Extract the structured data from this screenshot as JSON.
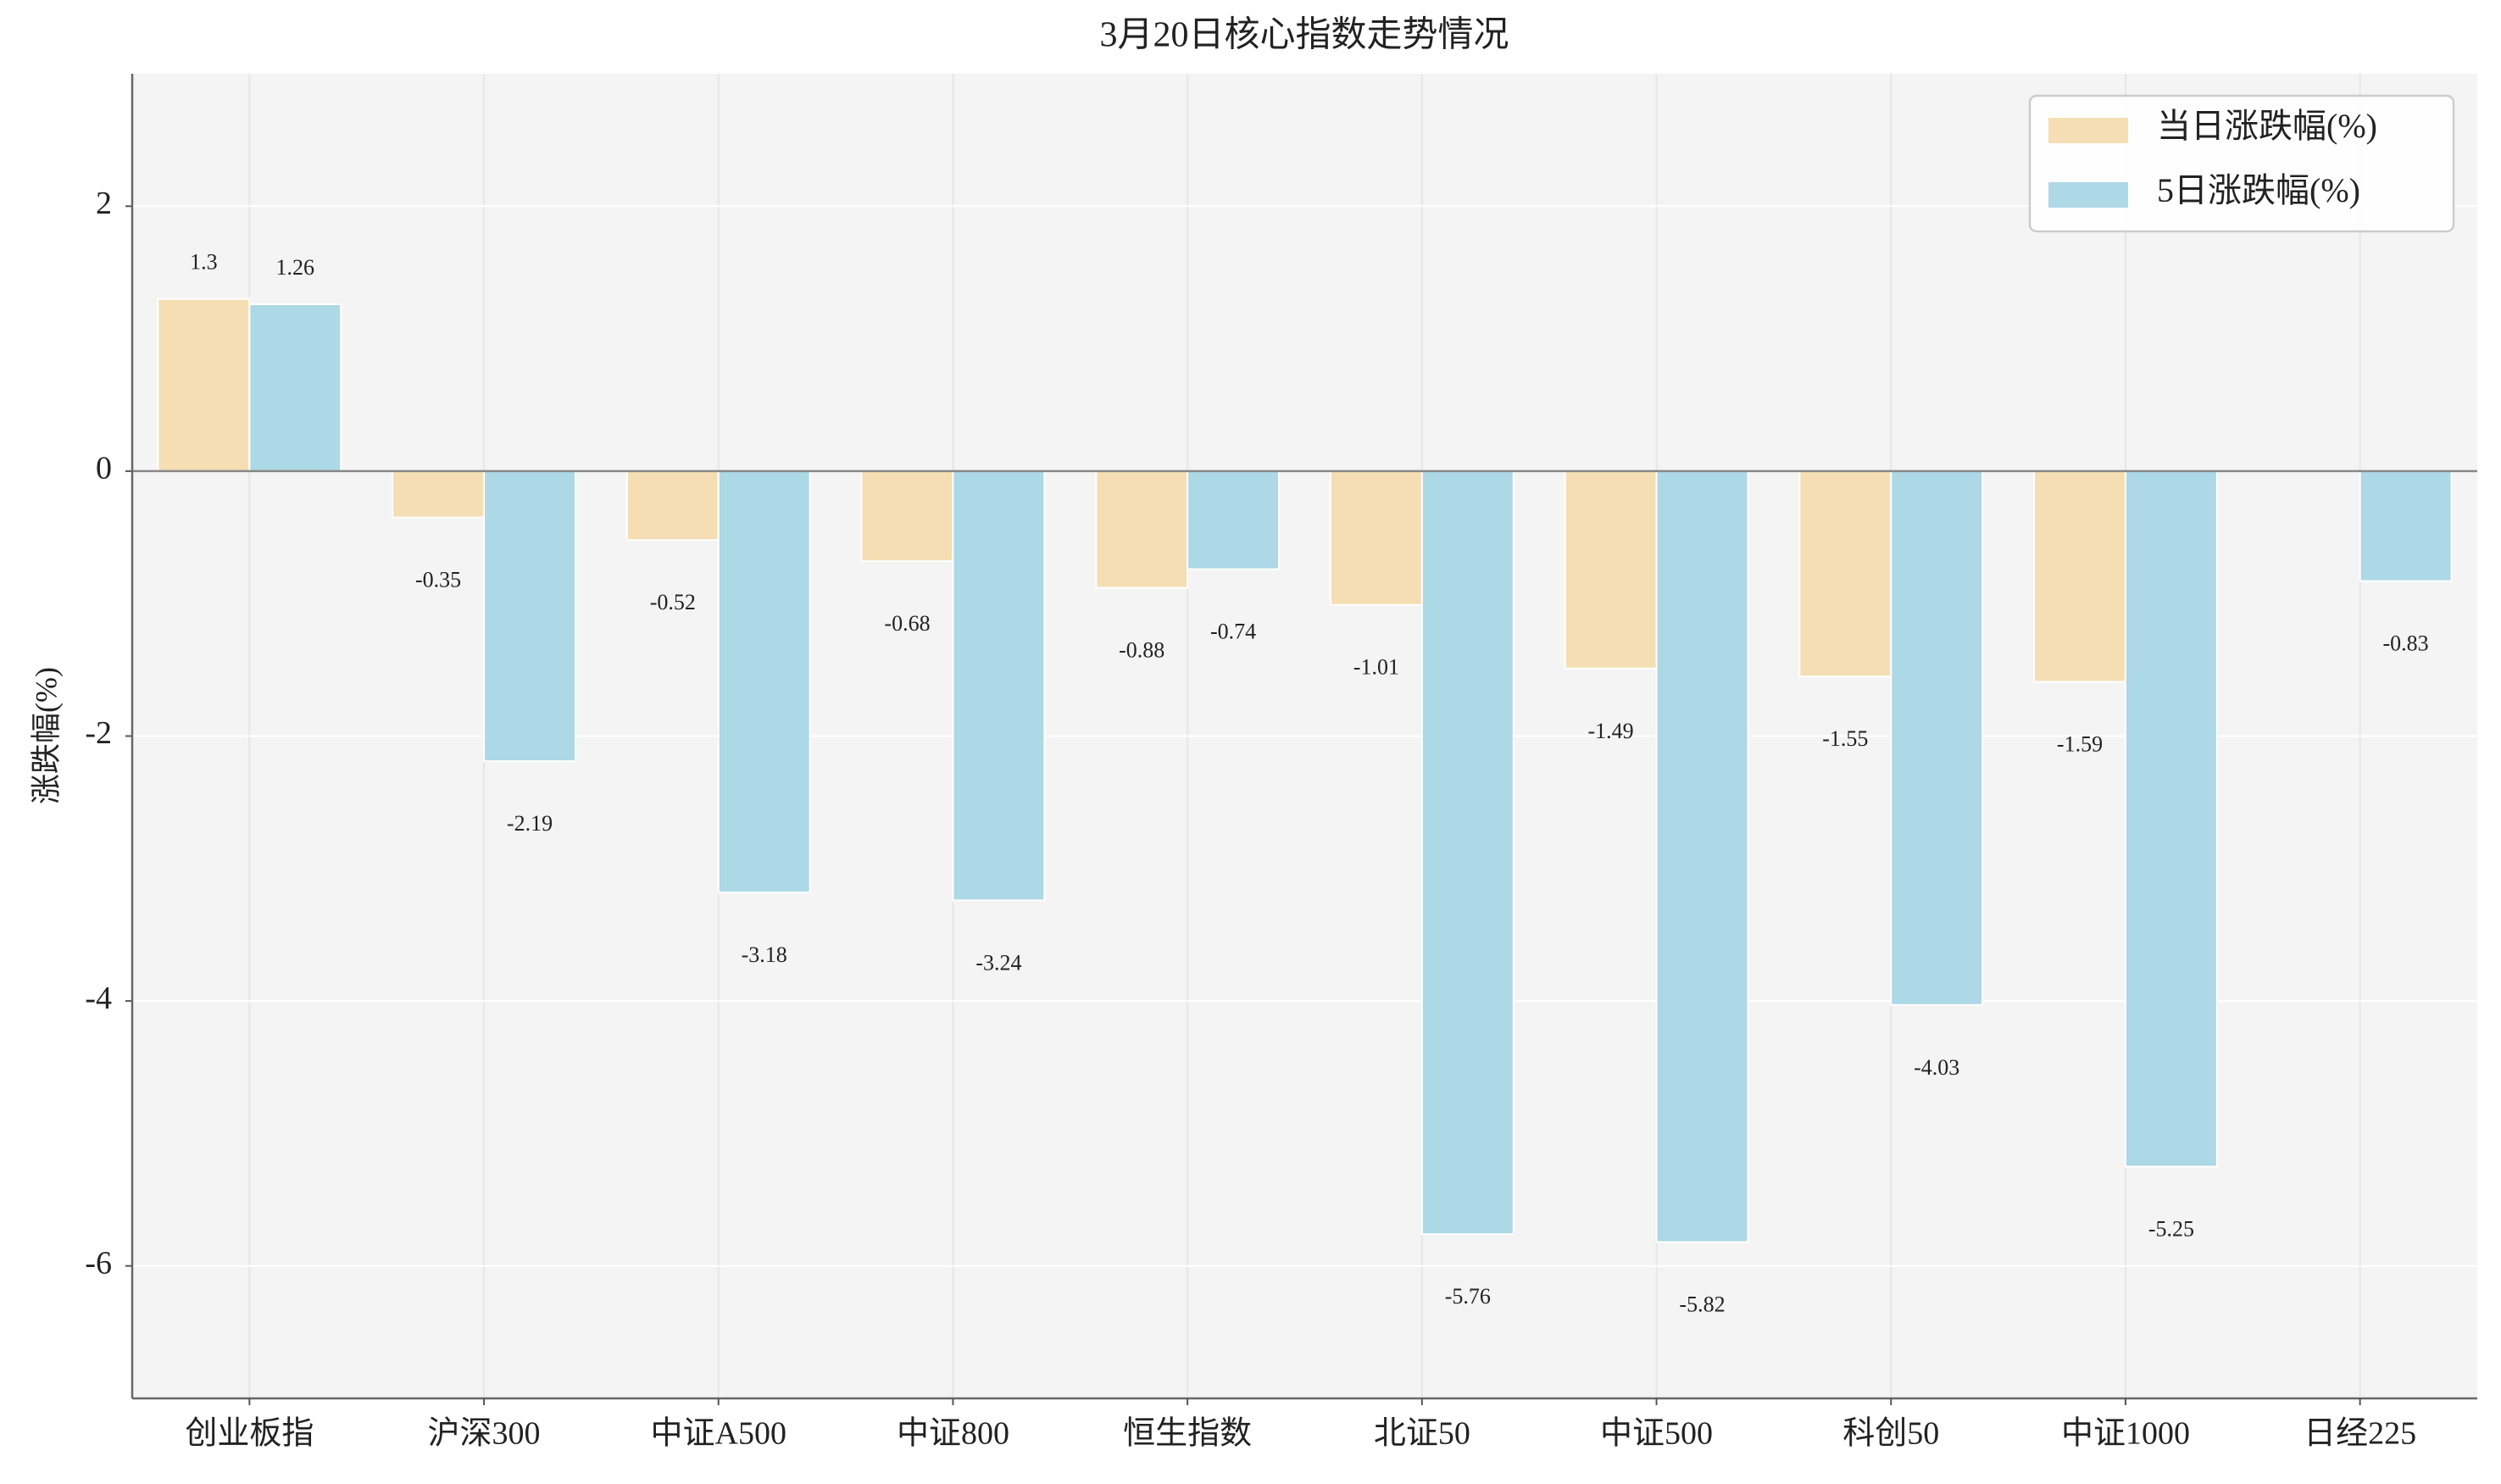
{
  "chart_data": {
    "type": "bar",
    "title": "3月20日核心指数走势情况",
    "y_label": "涨跌幅(%)",
    "categories": [
      "创业板指",
      "沪深300",
      "中证A500",
      "中证800",
      "恒生指数",
      "北证50",
      "中证500",
      "科创50",
      "中证1000",
      "日经225"
    ],
    "series": [
      {
        "name": "当日涨跌幅(%)",
        "color": "#f5deb3",
        "values": [
          1.3,
          -0.35,
          -0.52,
          -0.68,
          -0.88,
          -1.01,
          -1.49,
          -1.55,
          -1.59,
          null
        ]
      },
      {
        "name": "5日涨跌幅(%)",
        "color": "#add8e6",
        "values": [
          1.26,
          -2.19,
          -3.18,
          -3.24,
          -0.74,
          -5.76,
          -5.82,
          -4.03,
          -5.25,
          -0.83
        ]
      }
    ],
    "ylim": [
      -7,
      3
    ],
    "yticks": [
      -6,
      -4,
      -2,
      0,
      2
    ],
    "grid": true,
    "legend": "upper right"
  }
}
